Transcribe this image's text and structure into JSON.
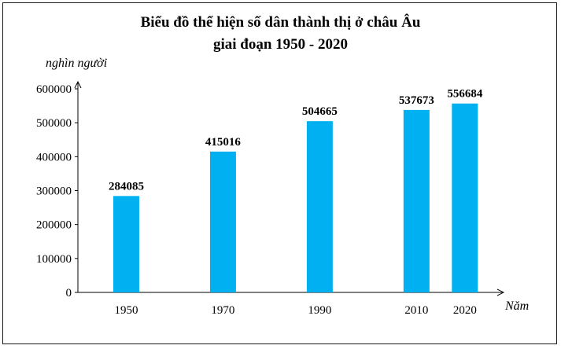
{
  "chart_data": {
    "type": "bar",
    "title": "Biểu đồ thể hiện số dân thành thị ở châu Âu",
    "subtitle": "giai đoạn 1950 - 2020",
    "ylabel": "nghìn người",
    "xlabel": "Năm",
    "categories": [
      "1950",
      "1970",
      "1990",
      "2010",
      "2020"
    ],
    "x": [
      1950,
      1970,
      1990,
      2010,
      2020
    ],
    "values": [
      284085,
      415016,
      504665,
      537673,
      556684
    ],
    "ylim": [
      0,
      600000
    ],
    "yticks": [
      "0",
      "100000",
      "200000",
      "300000",
      "400000",
      "500000",
      "600000"
    ],
    "grid": false,
    "bar_color": "#00b0f0"
  }
}
